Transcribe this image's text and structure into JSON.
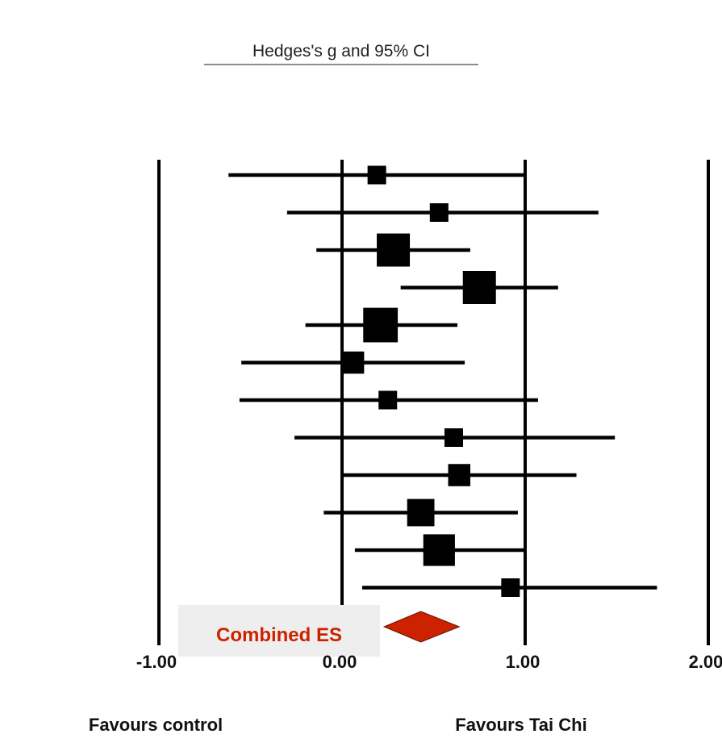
{
  "chart_data": {
    "type": "forest",
    "title": "Hedges's g and 95% CI",
    "x_ticks": [
      "-1.00",
      "0.00",
      "1.00",
      "2.00"
    ],
    "xlim": [
      -1.0,
      2.0
    ],
    "axis_labels": {
      "left": "Favours control",
      "right": "Favours Tai Chi"
    },
    "studies": [
      {
        "g": 0.19,
        "lower": -0.62,
        "upper": 1.0,
        "weight": 1
      },
      {
        "g": 0.53,
        "lower": -0.3,
        "upper": 1.4,
        "weight": 1
      },
      {
        "g": 0.28,
        "lower": -0.14,
        "upper": 0.7,
        "weight": 3
      },
      {
        "g": 0.75,
        "lower": 0.32,
        "upper": 1.18,
        "weight": 3
      },
      {
        "g": 0.21,
        "lower": -0.2,
        "upper": 0.63,
        "weight": 3.2
      },
      {
        "g": 0.06,
        "lower": -0.55,
        "upper": 0.67,
        "weight": 1.5
      },
      {
        "g": 0.25,
        "lower": -0.56,
        "upper": 1.07,
        "weight": 1
      },
      {
        "g": 0.61,
        "lower": -0.26,
        "upper": 1.49,
        "weight": 1
      },
      {
        "g": 0.64,
        "lower": 0.0,
        "upper": 1.28,
        "weight": 1.5
      },
      {
        "g": 0.43,
        "lower": -0.1,
        "upper": 0.96,
        "weight": 2.2
      },
      {
        "g": 0.53,
        "lower": 0.07,
        "upper": 1.0,
        "weight": 2.8
      },
      {
        "g": 0.92,
        "lower": 0.11,
        "upper": 1.72,
        "weight": 1
      }
    ],
    "combined": {
      "label": "Combined ES",
      "lower": 0.23,
      "estimate": 0.43,
      "upper": 0.64,
      "color": "#cc2200"
    }
  }
}
